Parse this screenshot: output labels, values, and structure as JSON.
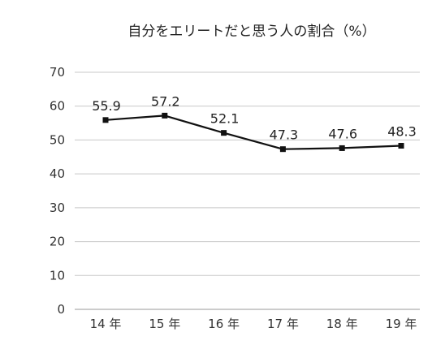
{
  "chart_data": {
    "type": "line",
    "title": "自分をエリートだと思う人の割合（%）",
    "xlabel": "",
    "ylabel": "",
    "categories": [
      "14 年",
      "15 年",
      "16 年",
      "17 年",
      "18 年",
      "19 年"
    ],
    "series": [
      {
        "values": [
          55.9,
          57.2,
          52.1,
          47.3,
          47.6,
          48.3
        ],
        "value_labels": [
          "55.9",
          "57.2",
          "52.1",
          "47.3",
          "47.6",
          "48.3"
        ],
        "color": "#111111",
        "marker": "square"
      }
    ],
    "ylim": [
      0,
      70
    ],
    "yticks": [
      0,
      10,
      20,
      30,
      40,
      50,
      60,
      70
    ],
    "grid": true,
    "legend": "none"
  }
}
